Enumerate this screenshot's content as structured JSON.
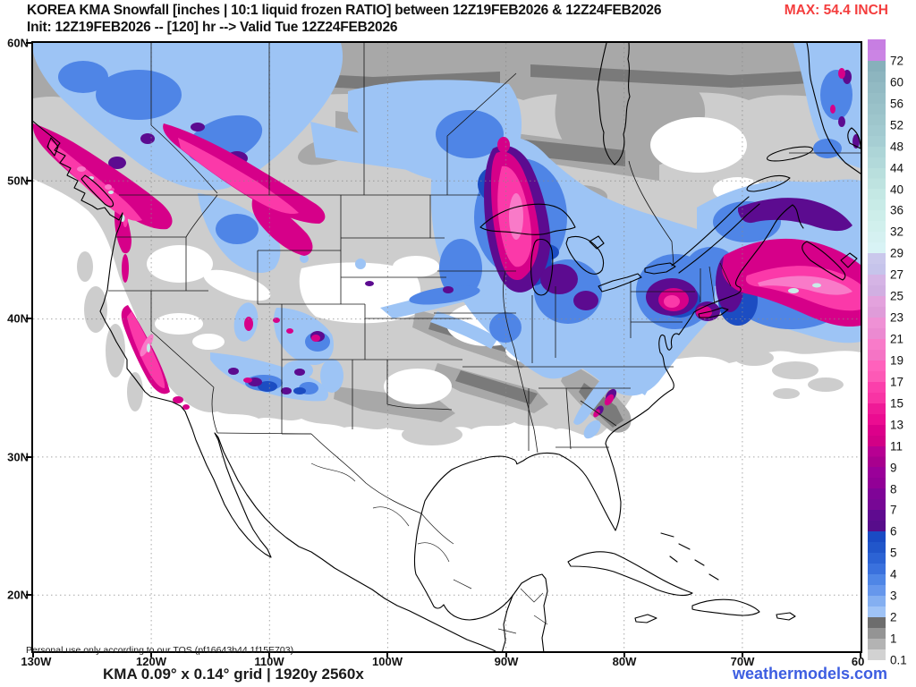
{
  "palette": {
    "lg": "#cdcdcd",
    "mg": "#a8a8a8",
    "dg": "#7a7a7a",
    "lb": "#9dc4f5",
    "mb": "#4f85e6",
    "db": "#1c4dc2",
    "pu": "#5c0b90",
    "ma": "#d60089",
    "hp": "#fb39a9",
    "lp": "#f97ac8",
    "cy": "#c9ece8",
    "accent_red": "#f43d3d",
    "site_blue": "#3d5ee1"
  },
  "header": {
    "title_line1": "KOREA KMA Snowfall [inches | 10:1 liquid frozen RATIO] between 12Z19FEB2026 & 12Z24FEB2026",
    "title_line2": "Init: 12Z19FEB2026 -- [120] hr --> Valid Tue 12Z24FEB2026",
    "max_label": "MAX: 54.4 INCH"
  },
  "axes": {
    "lat_labels": [
      "60N",
      "50N",
      "40N",
      "30N",
      "20N"
    ],
    "lon_labels": [
      "130W",
      "120W",
      "110W",
      "100W",
      "90W",
      "80W",
      "70W",
      "60"
    ]
  },
  "map": {
    "watermark": "Personal use only according to our TOS (pf16643b44 1f15E703)"
  },
  "colorbar": {
    "unit": "inches",
    "labels_top_to_bottom": [
      "72",
      "60",
      "56",
      "52",
      "48",
      "44",
      "40",
      "36",
      "32",
      "29",
      "27",
      "25",
      "23",
      "21",
      "19",
      "17",
      "15",
      "13",
      "11",
      "9",
      "8",
      "7",
      "6",
      "5",
      "4",
      "3",
      "2",
      "1",
      "0.1"
    ],
    "segments": [
      {
        "v": ">72",
        "c1": "#c77ee2",
        "c2": "#cb84e4"
      },
      {
        "v": "60-72",
        "c1": "#87b0bb",
        "c2": "#8db5bf"
      },
      {
        "v": "56-60",
        "c1": "#92bac3",
        "c2": "#96bec6"
      },
      {
        "v": "52-56",
        "c1": "#9ac2c9",
        "c2": "#9ec6cc"
      },
      {
        "v": "48-52",
        "c1": "#a2cad0",
        "c2": "#a6ced3"
      },
      {
        "v": "44-48",
        "c1": "#add5d7",
        "c2": "#b2d9da"
      },
      {
        "v": "40-44",
        "c1": "#b9dfdd",
        "c2": "#bee3e0"
      },
      {
        "v": "36-40",
        "c1": "#c4e8e4",
        "c2": "#c8ebe7"
      },
      {
        "v": "32-36",
        "c1": "#cdeeea",
        "c2": "#d1f0ed"
      },
      {
        "v": "29-32",
        "c1": "#d5f1f1",
        "c2": "#d8f3f5"
      },
      {
        "v": "27-29",
        "c1": "#cac8ec",
        "c2": "#c6c4eb"
      },
      {
        "v": "25-27",
        "c1": "#d5b4e5",
        "c2": "#d1afe2"
      },
      {
        "v": "23-25",
        "c1": "#e3a2dd",
        "c2": "#df9cd9"
      },
      {
        "v": "21-23",
        "c1": "#ef91d5",
        "c2": "#eb8ad1"
      },
      {
        "v": "19-21",
        "c1": "#f87bc9",
        "c2": "#f574c5"
      },
      {
        "v": "17-19",
        "c1": "#ff61bc",
        "c2": "#fd59b6"
      },
      {
        "v": "15-17",
        "c1": "#fb3fab",
        "c2": "#f834a4"
      },
      {
        "v": "13-15",
        "c1": "#ef1a97",
        "c2": "#eb0c91"
      },
      {
        "v": "11-13",
        "c1": "#dc008a",
        "c2": "#d20086"
      },
      {
        "v": "9-11",
        "c1": "#b70092",
        "c2": "#a8008e"
      },
      {
        "v": "8-9",
        "c1": "#9a0099",
        "c2": "#920096"
      },
      {
        "v": "7-8",
        "c1": "#7f0497",
        "c2": "#770795"
      },
      {
        "v": "6-7",
        "c1": "#5f0b90",
        "c2": "#570d8b"
      },
      {
        "v": "5-6",
        "c1": "#1a4bc4",
        "c2": "#2156ca"
      },
      {
        "v": "4-5",
        "c1": "#2c63d4",
        "c2": "#3a71dd"
      },
      {
        "v": "3-4",
        "c1": "#4f86e6",
        "c2": "#6697ec"
      },
      {
        "v": "2-3",
        "c1": "#84aff1",
        "c2": "#9fc3f6"
      },
      {
        "v": "1-2",
        "c1": "#6d6d6d",
        "c2": "#949494"
      },
      {
        "v": "0.1-1",
        "c1": "#b3b3b3",
        "c2": "#d2d2d2"
      }
    ]
  },
  "footer": {
    "grid_info": "KMA 0.09° x 0.14° grid | 1920y 2560x",
    "site": "weathermodels.com"
  }
}
